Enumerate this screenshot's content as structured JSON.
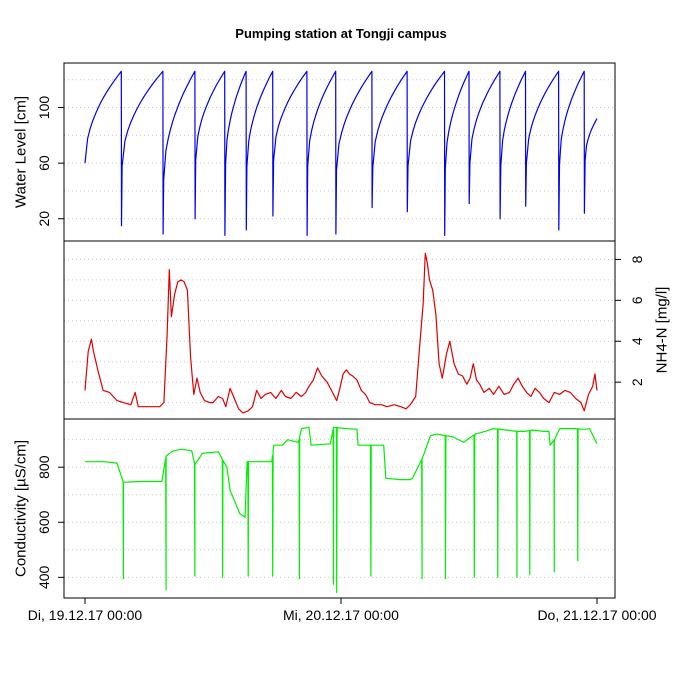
{
  "chart_data": {
    "type": "line",
    "title": "Pumping station at Tongji campus",
    "x": {
      "tick_labels": [
        "Di, 19.12.17 00:00",
        "Mi, 20.12.17 00:00",
        "Do, 21.12.17 00:00"
      ],
      "tick_hours": [
        0,
        24,
        48
      ],
      "range_hours": [
        0,
        48
      ]
    },
    "panels": [
      {
        "name": "water-level",
        "ylabel": "Water Level [cm]",
        "yaxis_side": "left",
        "ylim": [
          4,
          132
        ],
        "ticks": [
          20,
          60,
          100
        ],
        "grid_lines": [
          20,
          40,
          60,
          80,
          100,
          120
        ],
        "color": "#0000ee",
        "series": {
          "type": "sawtooth",
          "start": 60,
          "end": 92,
          "cycles": [
            {
              "peak_h": 3.4,
              "peak": 126,
              "drop_min": 15,
              "restart": 58
            },
            {
              "peak_h": 7.3,
              "peak": 126,
              "drop_min": 9,
              "restart": 48
            },
            {
              "peak_h": 10.3,
              "peak": 126,
              "drop_min": 20,
              "restart": 62
            },
            {
              "peak_h": 13.1,
              "peak": 126,
              "drop_min": 8,
              "restart": 59
            },
            {
              "peak_h": 15.1,
              "peak": 126,
              "drop_min": 12,
              "restart": 58
            },
            {
              "peak_h": 17.6,
              "peak": 126,
              "drop_min": 22,
              "restart": 62
            },
            {
              "peak_h": 20.8,
              "peak": 126,
              "drop_min": 8,
              "restart": 58
            },
            {
              "peak_h": 23.5,
              "peak": 126,
              "drop_min": 9,
              "restart": 55
            },
            {
              "peak_h": 26.9,
              "peak": 126,
              "drop_min": 28,
              "restart": 57
            },
            {
              "peak_h": 30.2,
              "peak": 126,
              "drop_min": 25,
              "restart": 58
            },
            {
              "peak_h": 33.7,
              "peak": 126,
              "drop_min": 8,
              "restart": 56
            },
            {
              "peak_h": 36.0,
              "peak": 126,
              "drop_min": 31,
              "restart": 60
            },
            {
              "peak_h": 38.9,
              "peak": 126,
              "drop_min": 20,
              "restart": 58
            },
            {
              "peak_h": 41.3,
              "peak": 126,
              "drop_min": 29,
              "restart": 60
            },
            {
              "peak_h": 44.4,
              "peak": 126,
              "drop_min": 12,
              "restart": 59
            },
            {
              "peak_h": 46.8,
              "peak": 126,
              "drop_min": 24,
              "restart": 62
            }
          ]
        }
      },
      {
        "name": "nh4n",
        "ylabel": "NH4-N [mg/l]",
        "yaxis_side": "right",
        "ylim": [
          0.2,
          8.9
        ],
        "ticks": [
          2,
          4,
          6,
          8
        ],
        "grid_lines": [
          1,
          2,
          3,
          4,
          5,
          6,
          7,
          8
        ],
        "color": "#dd0000",
        "series": {
          "type": "line",
          "points": [
            [
              0,
              1.6
            ],
            [
              0.3,
              3.5
            ],
            [
              0.6,
              4.1
            ],
            [
              0.8,
              3.5
            ],
            [
              1.2,
              2.6
            ],
            [
              1.7,
              1.6
            ],
            [
              2.3,
              1.5
            ],
            [
              3.0,
              1.1
            ],
            [
              3.6,
              1.0
            ],
            [
              4.3,
              0.9
            ],
            [
              4.7,
              1.5
            ],
            [
              5.0,
              0.8
            ],
            [
              6.0,
              0.8
            ],
            [
              7.0,
              0.8
            ],
            [
              7.4,
              1.0
            ],
            [
              7.7,
              4.3
            ],
            [
              7.9,
              7.5
            ],
            [
              8.1,
              5.2
            ],
            [
              8.4,
              6.3
            ],
            [
              8.7,
              6.9
            ],
            [
              9.0,
              7.0
            ],
            [
              9.3,
              6.9
            ],
            [
              9.6,
              6.5
            ],
            [
              9.9,
              3.2
            ],
            [
              10.2,
              1.4
            ],
            [
              10.5,
              2.2
            ],
            [
              10.8,
              1.5
            ],
            [
              11.2,
              1.1
            ],
            [
              11.7,
              1.0
            ],
            [
              12.0,
              1.0
            ],
            [
              12.5,
              1.3
            ],
            [
              12.9,
              1.2
            ],
            [
              13.2,
              0.8
            ],
            [
              13.6,
              1.7
            ],
            [
              14.0,
              1.2
            ],
            [
              14.4,
              0.7
            ],
            [
              14.8,
              0.5
            ],
            [
              15.3,
              0.6
            ],
            [
              15.7,
              0.8
            ],
            [
              16.1,
              1.6
            ],
            [
              16.5,
              1.2
            ],
            [
              16.9,
              1.4
            ],
            [
              17.4,
              1.5
            ],
            [
              17.9,
              1.2
            ],
            [
              18.4,
              1.6
            ],
            [
              18.8,
              1.3
            ],
            [
              19.3,
              1.2
            ],
            [
              19.8,
              1.5
            ],
            [
              20.3,
              1.3
            ],
            [
              20.7,
              1.5
            ],
            [
              21.0,
              1.8
            ],
            [
              21.4,
              2.1
            ],
            [
              21.8,
              2.7
            ],
            [
              22.2,
              2.3
            ],
            [
              22.7,
              2.0
            ],
            [
              23.2,
              1.5
            ],
            [
              23.6,
              1.1
            ],
            [
              23.9,
              1.7
            ],
            [
              24.2,
              2.4
            ],
            [
              24.5,
              2.6
            ],
            [
              24.8,
              2.4
            ],
            [
              25.1,
              2.3
            ],
            [
              25.5,
              2.1
            ],
            [
              25.9,
              1.6
            ],
            [
              26.3,
              1.4
            ],
            [
              26.7,
              1.0
            ],
            [
              27.2,
              0.9
            ],
            [
              27.8,
              0.9
            ],
            [
              28.3,
              0.8
            ],
            [
              29.0,
              0.9
            ],
            [
              29.6,
              0.8
            ],
            [
              30.1,
              0.7
            ],
            [
              30.5,
              0.9
            ],
            [
              31.0,
              1.3
            ],
            [
              31.4,
              3.9
            ],
            [
              31.7,
              5.8
            ],
            [
              31.9,
              8.3
            ],
            [
              32.1,
              7.8
            ],
            [
              32.3,
              7.0
            ],
            [
              32.6,
              6.5
            ],
            [
              32.9,
              5.3
            ],
            [
              33.2,
              2.9
            ],
            [
              33.5,
              2.2
            ],
            [
              33.9,
              3.4
            ],
            [
              34.2,
              4.0
            ],
            [
              34.6,
              2.9
            ],
            [
              35.0,
              2.4
            ],
            [
              35.4,
              2.3
            ],
            [
              35.8,
              1.9
            ],
            [
              36.1,
              2.2
            ],
            [
              36.4,
              2.9
            ],
            [
              36.7,
              2.1
            ],
            [
              37.0,
              1.9
            ],
            [
              37.4,
              1.5
            ],
            [
              37.9,
              1.7
            ],
            [
              38.3,
              1.4
            ],
            [
              38.8,
              1.8
            ],
            [
              39.3,
              1.4
            ],
            [
              39.8,
              1.5
            ],
            [
              40.2,
              1.9
            ],
            [
              40.6,
              2.2
            ],
            [
              41.0,
              1.8
            ],
            [
              41.4,
              1.5
            ],
            [
              41.8,
              1.3
            ],
            [
              42.2,
              1.7
            ],
            [
              42.6,
              1.5
            ],
            [
              43.0,
              1.2
            ],
            [
              43.5,
              1.0
            ],
            [
              44.0,
              1.5
            ],
            [
              44.5,
              1.4
            ],
            [
              45.0,
              1.6
            ],
            [
              45.5,
              1.5
            ],
            [
              46.0,
              1.2
            ],
            [
              46.5,
              1.0
            ],
            [
              46.8,
              0.6
            ],
            [
              47.2,
              1.4
            ],
            [
              47.6,
              1.8
            ],
            [
              47.8,
              2.4
            ],
            [
              48.0,
              1.6
            ]
          ]
        }
      },
      {
        "name": "conductivity",
        "ylabel": "Conductivity [µS/cm]",
        "yaxis_side": "left",
        "ylim": [
          325,
          975
        ],
        "ticks": [
          400,
          600,
          800
        ],
        "grid_lines": [
          400,
          500,
          600,
          700,
          800,
          900
        ],
        "color": "#00ee00",
        "series": {
          "type": "step-with-dips",
          "base_points": [
            [
              0,
              820
            ],
            [
              1.8,
              820
            ],
            [
              3.0,
              815
            ],
            [
              3.6,
              745
            ],
            [
              5.0,
              748
            ],
            [
              7.2,
              748
            ],
            [
              7.6,
              840
            ],
            [
              8.2,
              858
            ],
            [
              9.0,
              865
            ],
            [
              10.0,
              860
            ],
            [
              10.3,
              810
            ],
            [
              11.0,
              850
            ],
            [
              12.5,
              856
            ],
            [
              13.0,
              820
            ],
            [
              13.3,
              800
            ],
            [
              13.6,
              715
            ],
            [
              14.0,
              680
            ],
            [
              14.5,
              632
            ],
            [
              15.0,
              618
            ],
            [
              15.2,
              820
            ],
            [
              16.5,
              820
            ],
            [
              17.5,
              820
            ],
            [
              17.7,
              880
            ],
            [
              18.5,
              880
            ],
            [
              19.0,
              900
            ],
            [
              20.0,
              890
            ],
            [
              20.3,
              940
            ],
            [
              21.0,
              945
            ],
            [
              21.2,
              880
            ],
            [
              23.0,
              885
            ],
            [
              23.3,
              945
            ],
            [
              24.5,
              940
            ],
            [
              25.5,
              938
            ],
            [
              25.6,
              880
            ],
            [
              27.5,
              880
            ],
            [
              28.0,
              880
            ],
            [
              28.2,
              760
            ],
            [
              29.5,
              755
            ],
            [
              30.5,
              755
            ],
            [
              30.7,
              760
            ],
            [
              31.6,
              830
            ],
            [
              32.4,
              915
            ],
            [
              33.0,
              920
            ],
            [
              34.5,
              910
            ],
            [
              35.5,
              890
            ],
            [
              36.0,
              905
            ],
            [
              36.6,
              920
            ],
            [
              37.5,
              930
            ],
            [
              38.3,
              940
            ],
            [
              39.5,
              935
            ],
            [
              40.5,
              930
            ],
            [
              41.2,
              930
            ],
            [
              42.0,
              935
            ],
            [
              43.0,
              930
            ],
            [
              43.5,
              930
            ],
            [
              43.6,
              880
            ],
            [
              44.0,
              900
            ],
            [
              44.5,
              940
            ],
            [
              45.8,
              940
            ],
            [
              46.5,
              938
            ],
            [
              47.0,
              938
            ],
            [
              47.3,
              940
            ],
            [
              48.0,
              885
            ]
          ],
          "dips": [
            [
              3.6,
              395
            ],
            [
              7.6,
              355
            ],
            [
              10.3,
              405
            ],
            [
              12.9,
              400
            ],
            [
              15.3,
              405
            ],
            [
              17.6,
              405
            ],
            [
              20.1,
              395
            ],
            [
              23.3,
              375
            ],
            [
              23.6,
              345
            ],
            [
              26.8,
              405
            ],
            [
              31.6,
              395
            ],
            [
              33.8,
              395
            ],
            [
              36.5,
              400
            ],
            [
              38.7,
              400
            ],
            [
              40.5,
              400
            ],
            [
              41.7,
              410
            ],
            [
              44.0,
              420
            ],
            [
              46.2,
              460
            ]
          ]
        }
      }
    ]
  }
}
